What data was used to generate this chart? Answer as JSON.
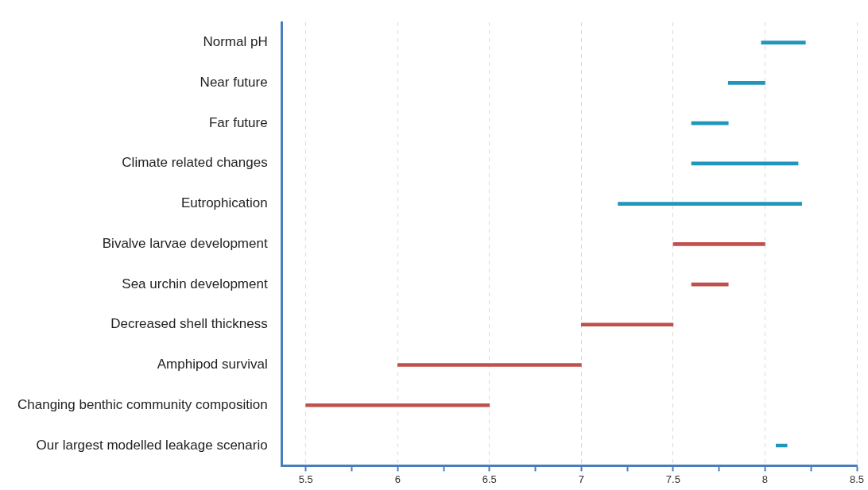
{
  "chart_data": {
    "type": "bar",
    "orientation": "horizontal",
    "categories": [
      "Normal pH",
      "Near future",
      "Far future",
      "Climate related changes",
      "Eutrophication",
      "Bivalve larvae development",
      "Sea urchin development",
      "Decreased shell thickness",
      "Amphipod survival",
      "Changing benthic community composition",
      "Our largest modelled leakage scenario"
    ],
    "base": [
      7.98,
      7.8,
      7.6,
      7.6,
      7.2,
      7.5,
      7.6,
      7.0,
      6.0,
      5.5,
      8.06
    ],
    "values": [
      0.24,
      0.2,
      0.2,
      0.58,
      1.0,
      0.5,
      0.2,
      0.5,
      1.0,
      1.0,
      0.06
    ],
    "colors": [
      "#2196bd",
      "#2196bd",
      "#2196bd",
      "#2196bd",
      "#2196bd",
      "#c0504d",
      "#c0504d",
      "#c0504d",
      "#c0504d",
      "#c0504d",
      "#2196bd"
    ],
    "xlim": [
      5.37,
      8.5
    ],
    "xticks": [
      5.5,
      {
        "value": 5.75,
        "label": null
      },
      6,
      {
        "value": 6.25,
        "label": null
      },
      6.5,
      {
        "value": 6.75,
        "label": null
      },
      7,
      {
        "value": 7.25,
        "label": null
      },
      7.5,
      {
        "value": 7.75,
        "label": null
      },
      8,
      {
        "value": 8.25,
        "label": null
      },
      8.5
    ],
    "grid": "x",
    "legend": false
  }
}
